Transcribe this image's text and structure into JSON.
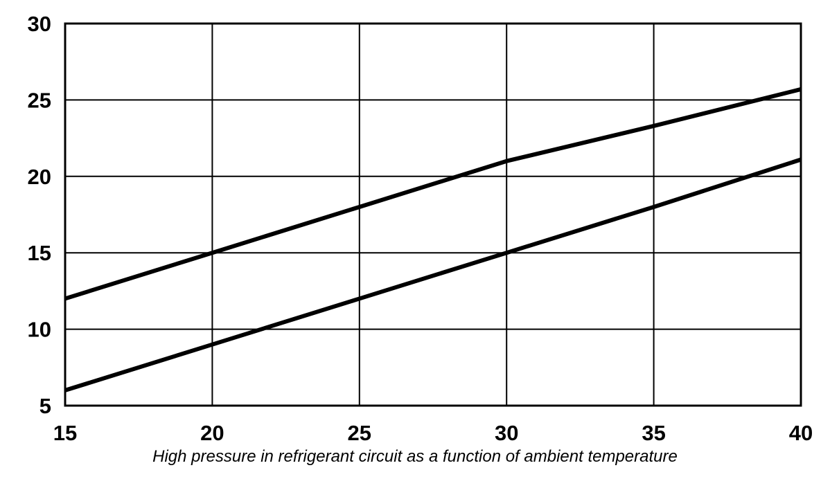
{
  "chart_data": {
    "type": "line",
    "title": "",
    "xlabel": "",
    "ylabel": "",
    "xlim": [
      15,
      40
    ],
    "ylim": [
      5,
      30
    ],
    "x_ticks": [
      15,
      20,
      25,
      30,
      35,
      40
    ],
    "y_ticks": [
      5,
      10,
      15,
      20,
      25,
      30
    ],
    "grid": true,
    "series": [
      {
        "x": [
          15,
          20,
          25,
          30,
          35,
          40
        ],
        "y": [
          12,
          15,
          18,
          21,
          23.3,
          25.7
        ]
      },
      {
        "x": [
          15,
          20,
          25,
          30,
          35,
          40
        ],
        "y": [
          6,
          9,
          12,
          15,
          18,
          21.1
        ]
      }
    ],
    "line_color": "#000000"
  },
  "caption": "High pressure in refrigerant circuit as a function of ambient temperature"
}
